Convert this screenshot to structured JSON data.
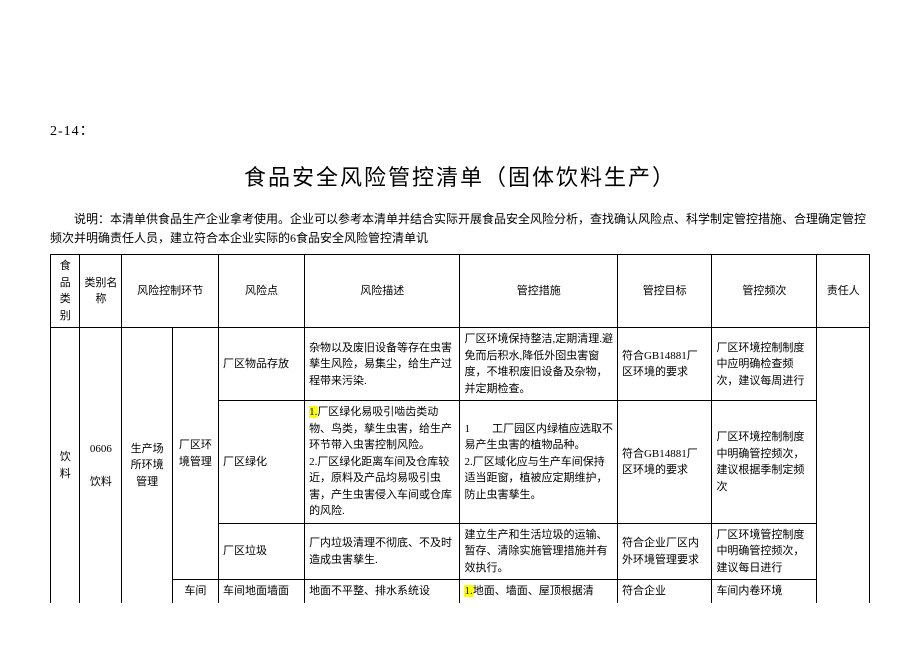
{
  "topLabel": "2-14：",
  "title": "食品安全风险管控清单（固体饮料生产）",
  "note": "说明：本清单供食品生产企业拿考使用。企业可以参考本清单并结合实际开展食品安全风险分析，查找确认风险点、科学制定管控措施、合理确定管控频次并明确责任人员，建立符合本企业实际的6食品安全风险管控清单讥",
  "headers": {
    "h0": "食品类别",
    "h1": "类别名称",
    "h2": "风险控制环节",
    "h3": "",
    "h4": "风险点",
    "h5": "风险描述",
    "h6": "管控措施",
    "h7": "管控目标",
    "h8": "管控频次",
    "h9": "责任人"
  },
  "body": {
    "cat": "饮料",
    "catName1": "0606",
    "catName2": "饮料",
    "env1": "生产场所环境管理",
    "env2": "厂区环境管理",
    "row1": {
      "risk": "厂区物品存放",
      "desc": "杂物以及废旧设备等存在虫害孳生风险，易集尘，给生产过程带来污染.",
      "measure": "厂区环境保持整洁,定期清理.避免而后积水,降低外囵虫害窗度，不堆积废旧设备及杂物，并定期检查。",
      "goal": "符合GB14881厂区环境的要求",
      "freq": "厂区环境控制制度中应明确检查频次，建议每周进行"
    },
    "row2": {
      "risk": "厂区绿化",
      "desc_hl": "1.",
      "desc_a": "厂区绿化易吸引啮齿类动物、鸟类，孳生虫害，给生产环节带入虫害控制风险。",
      "desc_b": "2.厂区绿化距离车间及仓库较近，原料及产品均易吸引虫害，产生虫害侵入车间或仓库的风险.",
      "measure_a": "1　　工厂园区内绿植应选取不易产生虫害的植物品种。",
      "measure_b": "2.厂区域化应与生产车间保持适当距窗，植被应定期维护，防止虫害孳生。",
      "goal": "符合GB14881厂区环境的要求",
      "freq": "厂区环境控制制度中明确管控频次，建议根据季制定频次"
    },
    "row3": {
      "risk": "厂区垃圾",
      "desc": "厂内垃圾清理不彻底、不及时造成虫害孳生.",
      "measure": "建立生产和生活垃圾的运输、暂存、清除实施管理措施并有效执行。",
      "goal": "符合企业厂区内外环境管理要求",
      "freq": "厂区环境管控制度中明确管控频次，建议每日进行"
    },
    "row4": {
      "env": "车间",
      "risk": "车间地面墙面",
      "desc": "地面不平整、排水系统设",
      "measure_hl": "1.",
      "measure": "地面、墙面、屋顶根据清",
      "goal": "符合企业",
      "freq": "车间内卷环境"
    }
  }
}
